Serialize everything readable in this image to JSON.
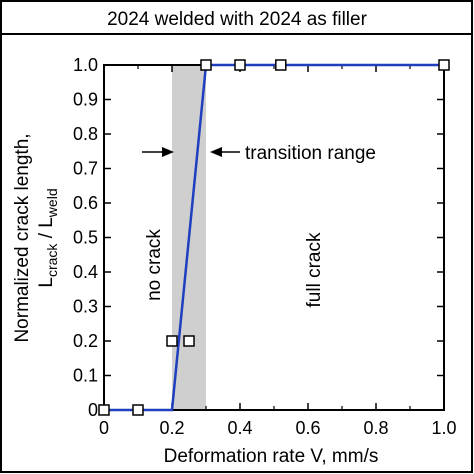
{
  "chart_data": {
    "type": "line",
    "title": "2024 welded with 2024 as filler",
    "xlabel": "Deformation rate V, mm/s",
    "ylabel_line1": "Normalized crack length,",
    "ylabel_main": "L",
    "ylabel_sub1": "crack",
    "ylabel_sep": " / L",
    "ylabel_sub2": "weld",
    "xlim": [
      0,
      1.0
    ],
    "ylim": [
      0,
      1.0
    ],
    "xticks": [
      0,
      0.2,
      0.4,
      0.6,
      0.8,
      1.0
    ],
    "xtick_labels": [
      "0",
      "0.2",
      "0.4",
      "0.6",
      "0.8",
      "1.0"
    ],
    "yticks": [
      0,
      0.1,
      0.2,
      0.3,
      0.4,
      0.5,
      0.6,
      0.7,
      0.8,
      0.9,
      1.0
    ],
    "ytick_labels": [
      "0",
      "0.1",
      "0.2",
      "0.3",
      "0.4",
      "0.5",
      "0.6",
      "0.7",
      "0.8",
      "0.9",
      "1.0"
    ],
    "grid": false,
    "series": [
      {
        "line_x": [
          0,
          0.2,
          0.3,
          1.0
        ],
        "line_y": [
          0,
          0,
          1.0,
          1.0
        ],
        "points_x": [
          0,
          0.1,
          0.2,
          0.25,
          0.3,
          0.4,
          0.52,
          1.0
        ],
        "points_y": [
          0,
          0,
          0.2,
          0.2,
          1.0,
          1.0,
          1.0,
          1.0
        ],
        "line_color": "#1f3fbf",
        "marker": "open-square"
      }
    ],
    "shaded_band": {
      "x": [
        0.2,
        0.3
      ],
      "color": "#cfcfcf"
    },
    "annotations": {
      "transition_label": "transition range",
      "no_crack_label": "no crack",
      "full_crack_label": "full crack"
    }
  }
}
